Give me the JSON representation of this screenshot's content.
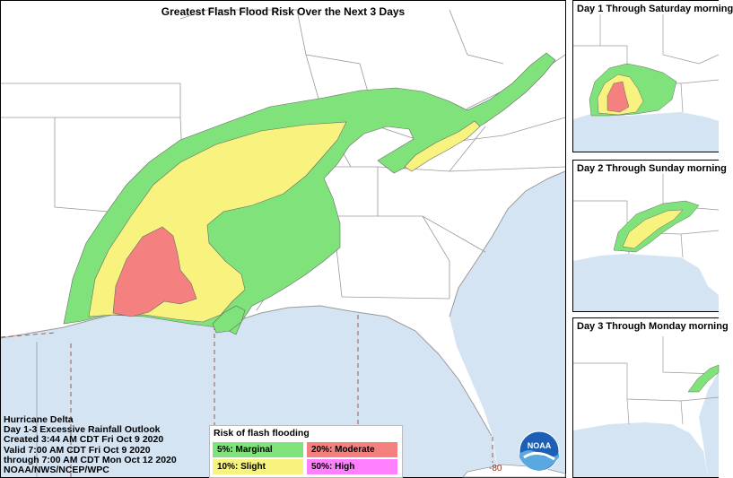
{
  "main": {
    "title": "Greatest Flash Flood Risk Over the Next 3 Days",
    "info_lines": [
      "Hurricane Delta",
      "Day 1-3 Excessive Rainfall Outlook",
      "Created 3:44 AM CDT Fri Oct 9 2020",
      "Valid 7:00 AM CDT Fri Oct 9 2020",
      "through 7:00 AM CDT Mon Oct 12 2020",
      "NOAA/NWS/NCEP/WPC"
    ],
    "longitude_label": "-80"
  },
  "legend": {
    "title": "Risk of flash flooding",
    "items": [
      {
        "label": "5%: Marginal",
        "color": "#80e27a"
      },
      {
        "label": "20%: Moderate",
        "color": "#f58080"
      },
      {
        "label": "10%: Slight",
        "color": "#f7f37e"
      },
      {
        "label": "50%: High",
        "color": "#ff80ff"
      }
    ]
  },
  "colors": {
    "ocean": "#d4e4f3",
    "land": "#ffffff",
    "border": "#9a9a9a",
    "marginal": "#80e27a",
    "slight": "#f7f37e",
    "moderate": "#f58080"
  },
  "side_panels": [
    {
      "title": "Day 1 Through Saturday morning"
    },
    {
      "title": "Day 2 Through Sunday morning"
    },
    {
      "title": "Day 3 Through Monday morning"
    }
  ],
  "logo": {
    "text": "NOAA",
    "icon": "noaa-logo-icon"
  }
}
